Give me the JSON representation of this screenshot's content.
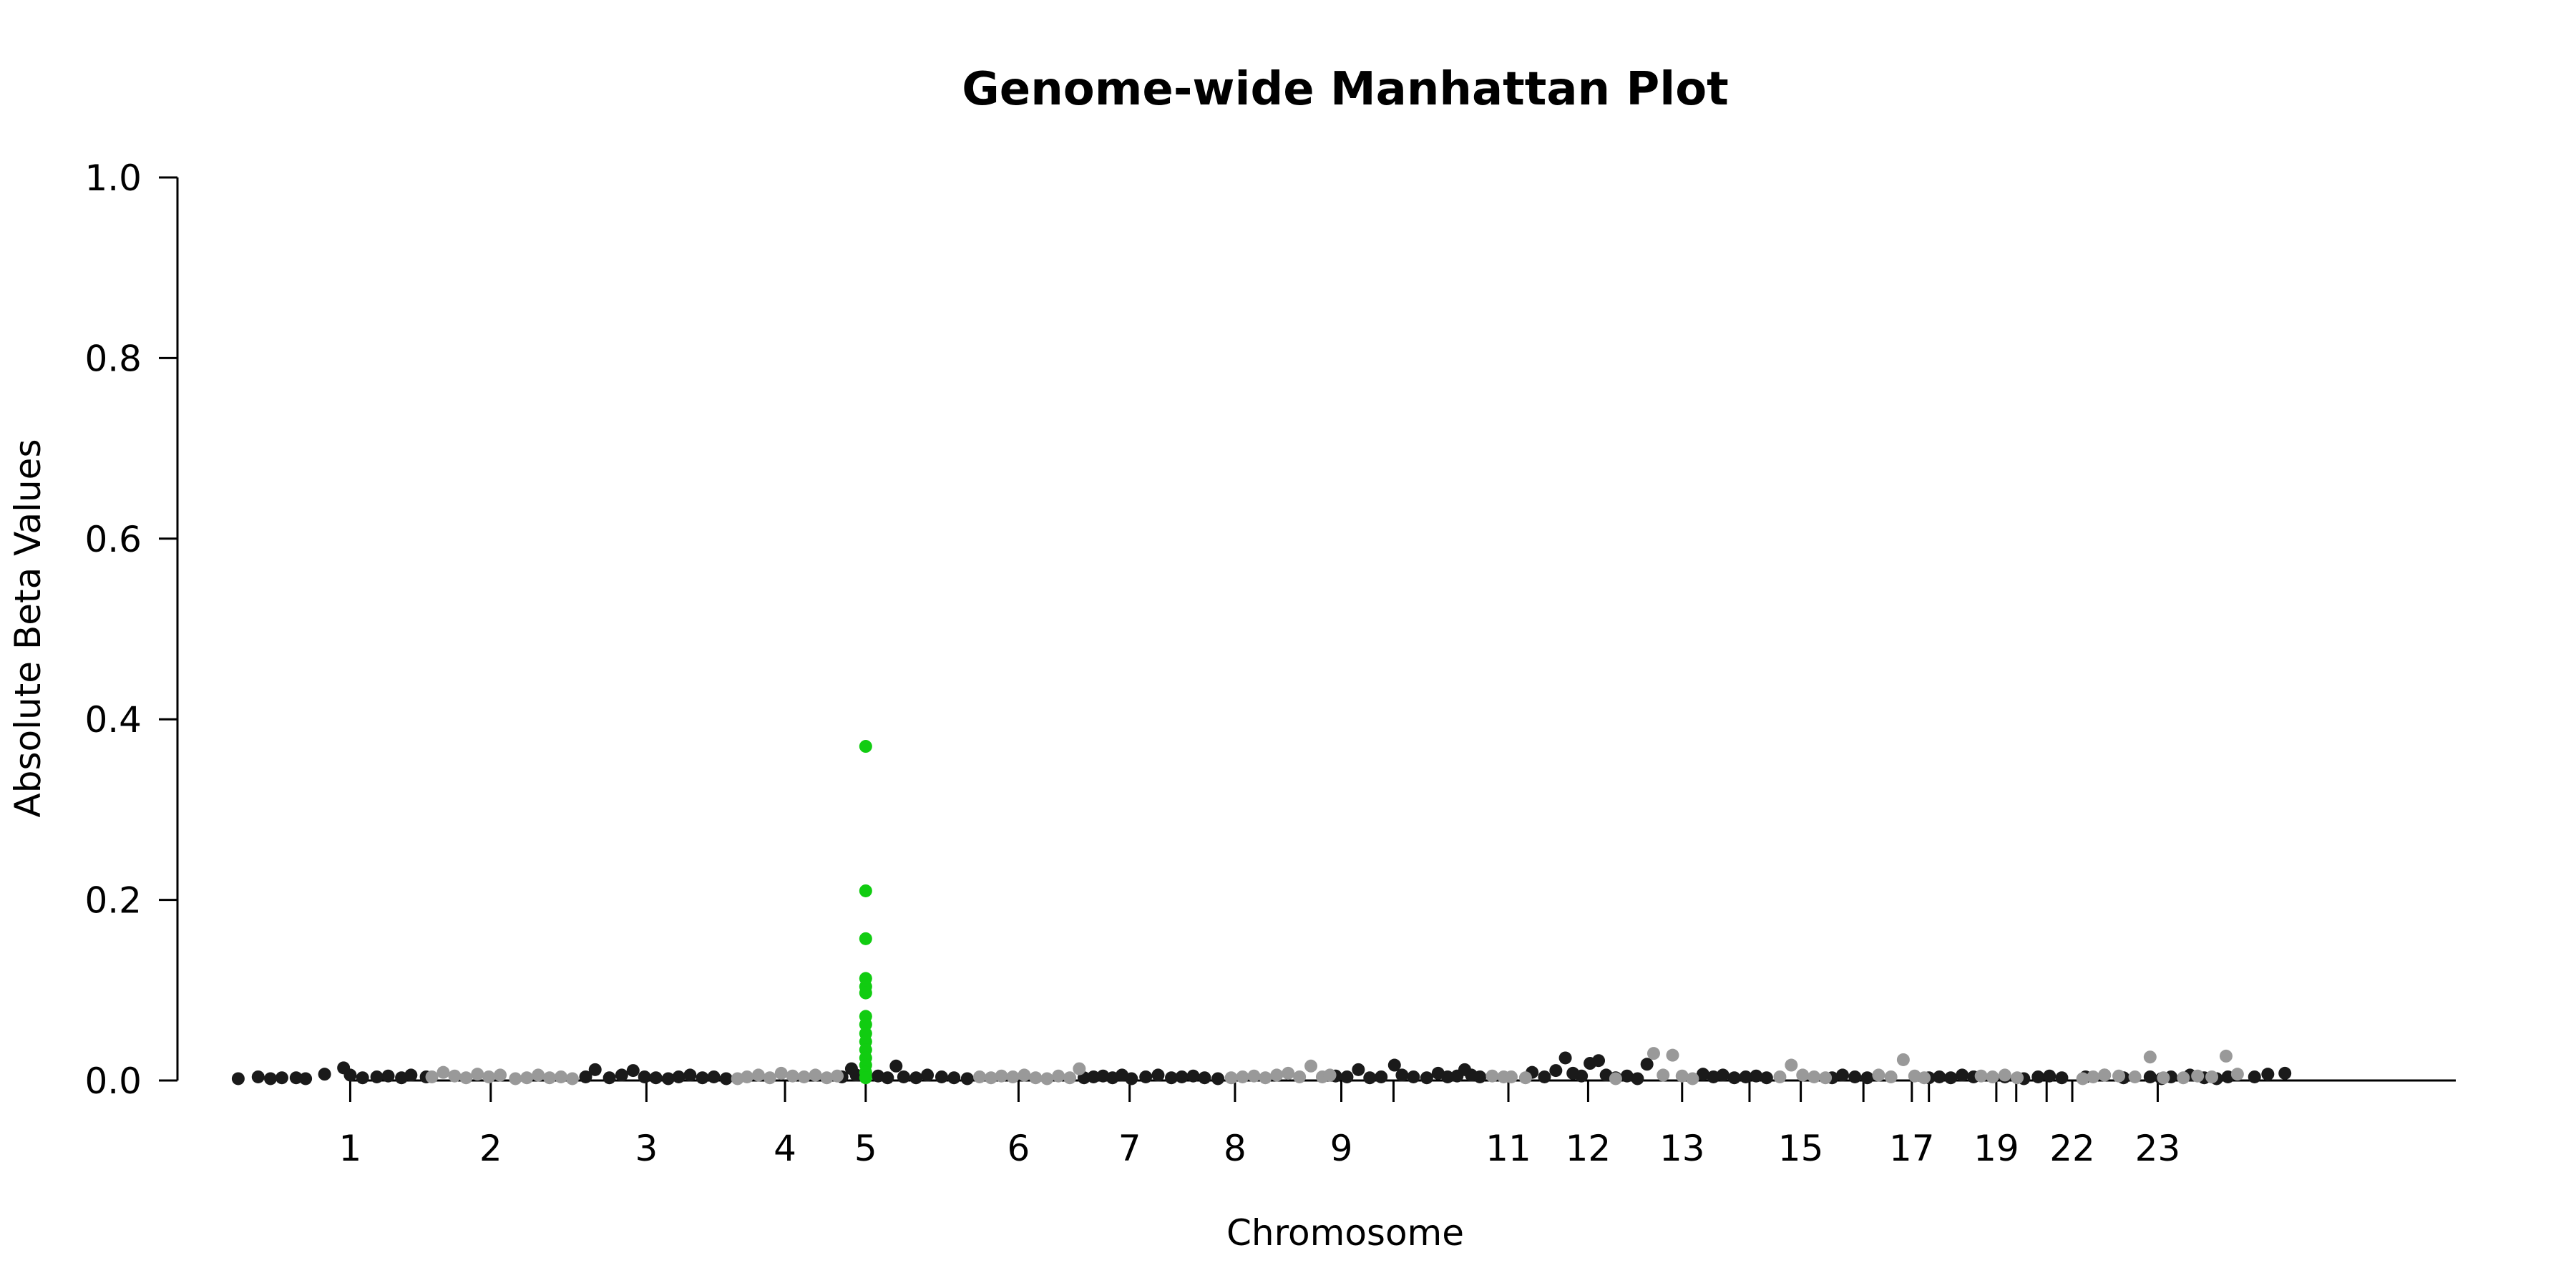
{
  "colors": {
    "dark": "#1a1a1a",
    "light": "#999999",
    "highlight": "#11cc11"
  },
  "chart_data": {
    "type": "scatter",
    "title": "Genome-wide Manhattan Plot",
    "xlabel": "Chromosome",
    "ylabel": "Absolute Beta Values",
    "ylim": [
      0,
      1.0
    ],
    "xlim": [
      0,
      2400
    ],
    "y_ticks": [
      "0.0",
      "0.2",
      "0.4",
      "0.6",
      "0.8",
      "1.0"
    ],
    "y_tick_values": [
      0,
      0.2,
      0.4,
      0.6,
      0.8,
      1.0
    ],
    "grid": false,
    "legend": "none",
    "chromosomes": [
      {
        "label": "",
        "start": 0,
        "end": 130
      },
      {
        "label": "1",
        "start": 130,
        "end": 270
      },
      {
        "label": "2",
        "start": 270,
        "end": 420
      },
      {
        "label": "3",
        "start": 420,
        "end": 580
      },
      {
        "label": "4",
        "start": 580,
        "end": 720
      },
      {
        "label": "5",
        "start": 720,
        "end": 840
      },
      {
        "label": "6",
        "start": 840,
        "end": 1000
      },
      {
        "label": "7",
        "start": 1000,
        "end": 1110
      },
      {
        "label": "8",
        "start": 1110,
        "end": 1220
      },
      {
        "label": "9",
        "start": 1220,
        "end": 1290
      },
      {
        "label": "",
        "start": 1290,
        "end": 1440
      },
      {
        "label": "11",
        "start": 1440,
        "end": 1520
      },
      {
        "label": "12",
        "start": 1520,
        "end": 1610
      },
      {
        "label": "13",
        "start": 1610,
        "end": 1680
      },
      {
        "label": "",
        "start": 1680,
        "end": 1740
      },
      {
        "label": "15",
        "start": 1740,
        "end": 1800
      },
      {
        "label": "",
        "start": 1800,
        "end": 1860
      },
      {
        "label": "17",
        "start": 1860,
        "end": 1895
      },
      {
        "label": "",
        "start": 1895,
        "end": 1925
      },
      {
        "label": "19",
        "start": 1925,
        "end": 1955
      },
      {
        "label": "",
        "start": 1955,
        "end": 1985
      },
      {
        "label": "",
        "start": 1985,
        "end": 2000
      },
      {
        "label": "22",
        "start": 2000,
        "end": 2030
      },
      {
        "label": "23",
        "start": 2030,
        "end": 2160
      }
    ],
    "x_ticks": [
      {
        "label": "1",
        "x": 182
      },
      {
        "label": "2",
        "x": 330
      },
      {
        "label": "3",
        "x": 494
      },
      {
        "label": "4",
        "x": 640
      },
      {
        "label": "5",
        "x": 725
      },
      {
        "label": "6",
        "x": 886
      },
      {
        "label": "7",
        "x": 1003
      },
      {
        "label": "8",
        "x": 1114
      },
      {
        "label": "9",
        "x": 1226
      },
      {
        "label": "",
        "x": 1281
      },
      {
        "label": "11",
        "x": 1402
      },
      {
        "label": "12",
        "x": 1486
      },
      {
        "label": "13",
        "x": 1585
      },
      {
        "label": "",
        "x": 1656
      },
      {
        "label": "15",
        "x": 1710
      },
      {
        "label": "",
        "x": 1776
      },
      {
        "label": "17",
        "x": 1827
      },
      {
        "label": "",
        "x": 1845
      },
      {
        "label": "19",
        "x": 1916
      },
      {
        "label": "",
        "x": 1937
      },
      {
        "label": "",
        "x": 1969
      },
      {
        "label": "22",
        "x": 1996
      },
      {
        "label": "23",
        "x": 2086
      }
    ],
    "series": [
      {
        "color_key": "highlight",
        "points": [
          [
            725,
            0.37
          ],
          [
            725,
            0.21
          ],
          [
            725,
            0.157
          ],
          [
            725,
            0.113
          ],
          [
            725,
            0.104
          ],
          [
            725,
            0.097
          ],
          [
            725,
            0.071
          ],
          [
            725,
            0.062
          ],
          [
            725,
            0.052
          ],
          [
            725,
            0.043
          ],
          [
            725,
            0.034
          ],
          [
            725,
            0.025
          ],
          [
            725,
            0.017
          ],
          [
            725,
            0.009
          ],
          [
            725,
            0.003
          ]
        ]
      },
      {
        "color_key": "dark",
        "points": [
          [
            64,
            0.002
          ],
          [
            85,
            0.004
          ],
          [
            98,
            0.002
          ],
          [
            110,
            0.003
          ],
          [
            125,
            0.003
          ],
          [
            135,
            0.002
          ],
          [
            155,
            0.007
          ],
          [
            175,
            0.014
          ],
          [
            182,
            0.006
          ],
          [
            195,
            0.003
          ],
          [
            210,
            0.004
          ],
          [
            222,
            0.005
          ],
          [
            236,
            0.003
          ],
          [
            246,
            0.006
          ],
          [
            262,
            0.004
          ],
          [
            430,
            0.004
          ],
          [
            440,
            0.012
          ],
          [
            455,
            0.003
          ],
          [
            468,
            0.006
          ],
          [
            480,
            0.011
          ],
          [
            492,
            0.004
          ],
          [
            504,
            0.003
          ],
          [
            517,
            0.002
          ],
          [
            528,
            0.004
          ],
          [
            540,
            0.006
          ],
          [
            553,
            0.003
          ],
          [
            565,
            0.004
          ],
          [
            578,
            0.002
          ],
          [
            700,
            0.004
          ],
          [
            710,
            0.013
          ],
          [
            715,
            0.006
          ],
          [
            738,
            0.005
          ],
          [
            748,
            0.003
          ],
          [
            757,
            0.016
          ],
          [
            765,
            0.004
          ],
          [
            778,
            0.003
          ],
          [
            790,
            0.006
          ],
          [
            805,
            0.004
          ],
          [
            818,
            0.003
          ],
          [
            832,
            0.002
          ],
          [
            955,
            0.003
          ],
          [
            965,
            0.004
          ],
          [
            975,
            0.005
          ],
          [
            985,
            0.003
          ],
          [
            995,
            0.006
          ],
          [
            1005,
            0.002
          ],
          [
            1020,
            0.004
          ],
          [
            1033,
            0.006
          ],
          [
            1047,
            0.003
          ],
          [
            1058,
            0.004
          ],
          [
            1070,
            0.005
          ],
          [
            1082,
            0.003
          ],
          [
            1096,
            0.002
          ],
          [
            1220,
            0.005
          ],
          [
            1232,
            0.004
          ],
          [
            1244,
            0.012
          ],
          [
            1256,
            0.003
          ],
          [
            1268,
            0.004
          ],
          [
            1282,
            0.017
          ],
          [
            1290,
            0.006
          ],
          [
            1302,
            0.004
          ],
          [
            1316,
            0.003
          ],
          [
            1328,
            0.008
          ],
          [
            1338,
            0.004
          ],
          [
            1348,
            0.005
          ],
          [
            1356,
            0.012
          ],
          [
            1363,
            0.006
          ],
          [
            1372,
            0.004
          ],
          [
            1427,
            0.009
          ],
          [
            1440,
            0.004
          ],
          [
            1452,
            0.011
          ],
          [
            1462,
            0.025
          ],
          [
            1470,
            0.008
          ],
          [
            1479,
            0.005
          ],
          [
            1488,
            0.019
          ],
          [
            1497,
            0.022
          ],
          [
            1505,
            0.006
          ],
          [
            1515,
            0.003
          ],
          [
            1527,
            0.005
          ],
          [
            1538,
            0.002
          ],
          [
            1548,
            0.018
          ],
          [
            1607,
            0.007
          ],
          [
            1618,
            0.004
          ],
          [
            1628,
            0.006
          ],
          [
            1640,
            0.003
          ],
          [
            1652,
            0.004
          ],
          [
            1663,
            0.005
          ],
          [
            1674,
            0.003
          ],
          [
            1743,
            0.003
          ],
          [
            1754,
            0.006
          ],
          [
            1767,
            0.004
          ],
          [
            1780,
            0.003
          ],
          [
            1845,
            0.003
          ],
          [
            1856,
            0.004
          ],
          [
            1868,
            0.003
          ],
          [
            1880,
            0.006
          ],
          [
            1892,
            0.004
          ],
          [
            1925,
            0.004
          ],
          [
            1945,
            0.002
          ],
          [
            1960,
            0.004
          ],
          [
            1972,
            0.005
          ],
          [
            1985,
            0.003
          ],
          [
            2010,
            0.004
          ],
          [
            2030,
            0.006
          ],
          [
            2050,
            0.003
          ],
          [
            2078,
            0.004
          ],
          [
            2090,
            0.002
          ],
          [
            2100,
            0.004
          ],
          [
            2120,
            0.006
          ],
          [
            2135,
            0.003
          ],
          [
            2148,
            0.002
          ],
          [
            2160,
            0.004
          ],
          [
            2188,
            0.004
          ],
          [
            2202,
            0.007
          ],
          [
            2220,
            0.008
          ]
        ]
      },
      {
        "color_key": "light",
        "points": [
          [
            268,
            0.004
          ],
          [
            280,
            0.009
          ],
          [
            292,
            0.005
          ],
          [
            304,
            0.003
          ],
          [
            316,
            0.007
          ],
          [
            328,
            0.004
          ],
          [
            340,
            0.006
          ],
          [
            356,
            0.002
          ],
          [
            368,
            0.003
          ],
          [
            380,
            0.006
          ],
          [
            392,
            0.003
          ],
          [
            404,
            0.004
          ],
          [
            416,
            0.002
          ],
          [
            590,
            0.002
          ],
          [
            600,
            0.004
          ],
          [
            612,
            0.006
          ],
          [
            624,
            0.003
          ],
          [
            636,
            0.008
          ],
          [
            648,
            0.005
          ],
          [
            660,
            0.004
          ],
          [
            672,
            0.006
          ],
          [
            684,
            0.003
          ],
          [
            695,
            0.005
          ],
          [
            845,
            0.004
          ],
          [
            857,
            0.003
          ],
          [
            868,
            0.005
          ],
          [
            880,
            0.004
          ],
          [
            892,
            0.006
          ],
          [
            904,
            0.003
          ],
          [
            916,
            0.002
          ],
          [
            928,
            0.005
          ],
          [
            940,
            0.003
          ],
          [
            950,
            0.013
          ],
          [
            1110,
            0.003
          ],
          [
            1122,
            0.004
          ],
          [
            1134,
            0.005
          ],
          [
            1146,
            0.003
          ],
          [
            1158,
            0.006
          ],
          [
            1170,
            0.008
          ],
          [
            1182,
            0.004
          ],
          [
            1194,
            0.016
          ],
          [
            1206,
            0.004
          ],
          [
            1214,
            0.006
          ],
          [
            1385,
            0.005
          ],
          [
            1397,
            0.004
          ],
          [
            1405,
            0.004
          ],
          [
            1420,
            0.003
          ],
          [
            1515,
            0.002
          ],
          [
            1555,
            0.03
          ],
          [
            1565,
            0.006
          ],
          [
            1575,
            0.028
          ],
          [
            1585,
            0.005
          ],
          [
            1596,
            0.002
          ],
          [
            1688,
            0.004
          ],
          [
            1700,
            0.017
          ],
          [
            1712,
            0.006
          ],
          [
            1724,
            0.004
          ],
          [
            1736,
            0.003
          ],
          [
            1792,
            0.006
          ],
          [
            1805,
            0.004
          ],
          [
            1818,
            0.023
          ],
          [
            1830,
            0.005
          ],
          [
            1840,
            0.003
          ],
          [
            1900,
            0.005
          ],
          [
            1912,
            0.004
          ],
          [
            1925,
            0.006
          ],
          [
            1938,
            0.003
          ],
          [
            2007,
            0.002
          ],
          [
            2018,
            0.004
          ],
          [
            2030,
            0.006
          ],
          [
            2045,
            0.005
          ],
          [
            2062,
            0.004
          ],
          [
            2078,
            0.026
          ],
          [
            2092,
            0.003
          ],
          [
            2113,
            0.003
          ],
          [
            2128,
            0.005
          ],
          [
            2143,
            0.004
          ],
          [
            2158,
            0.027
          ],
          [
            2170,
            0.007
          ]
        ]
      }
    ]
  }
}
